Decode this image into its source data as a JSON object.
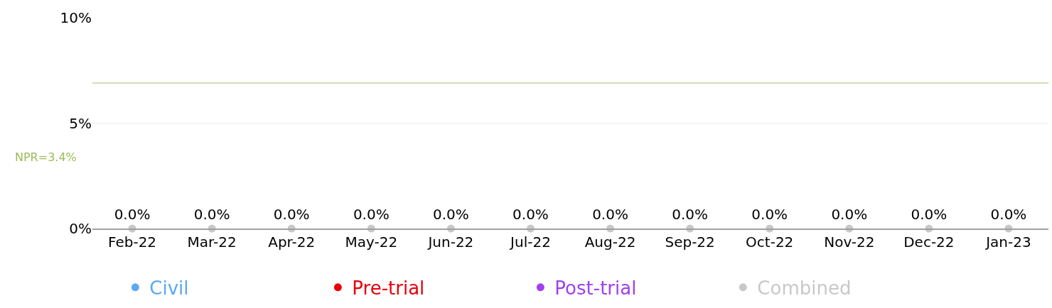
{
  "chart_data": {
    "type": "scatter",
    "categories": [
      "Feb-22",
      "Mar-22",
      "Apr-22",
      "May-22",
      "Jun-22",
      "Jul-22",
      "Aug-22",
      "Sep-22",
      "Oct-22",
      "Nov-22",
      "Dec-22",
      "Jan-23"
    ],
    "series": [
      {
        "name": "Civil",
        "color": "#5aa9f5",
        "values": [
          null,
          null,
          null,
          null,
          null,
          null,
          null,
          null,
          null,
          null,
          null,
          null
        ]
      },
      {
        "name": "Pre-trial",
        "color": "#e8000b",
        "values": [
          null,
          null,
          null,
          null,
          null,
          null,
          null,
          null,
          null,
          null,
          null,
          null
        ]
      },
      {
        "name": "Post-trial",
        "color": "#a040f0",
        "values": [
          null,
          null,
          null,
          null,
          null,
          null,
          null,
          null,
          null,
          null,
          null,
          null
        ]
      },
      {
        "name": "Combined",
        "color": "#c8c8c8",
        "values": [
          0,
          0,
          0,
          0,
          0,
          0,
          0,
          0,
          0,
          0,
          0,
          0
        ],
        "value_labels": [
          "0.0%",
          "0.0%",
          "0.0%",
          "0.0%",
          "0.0%",
          "0.0%",
          "0.0%",
          "0.0%",
          "0.0%",
          "0.0%",
          "0.0%",
          "0.0%"
        ]
      }
    ],
    "ylim": [
      0,
      10
    ],
    "yticks": [
      {
        "value": 0,
        "label": "0%"
      },
      {
        "value": 5,
        "label": "5%"
      },
      {
        "value": 10,
        "label": "10%"
      }
    ],
    "grid": "y",
    "legend": "bottom",
    "marker": "circle",
    "ref_lines": [
      {
        "axis": "y",
        "value": 6.9,
        "color": "#c6d09c"
      }
    ],
    "annotations": [
      "NPR=3.4%"
    ]
  }
}
